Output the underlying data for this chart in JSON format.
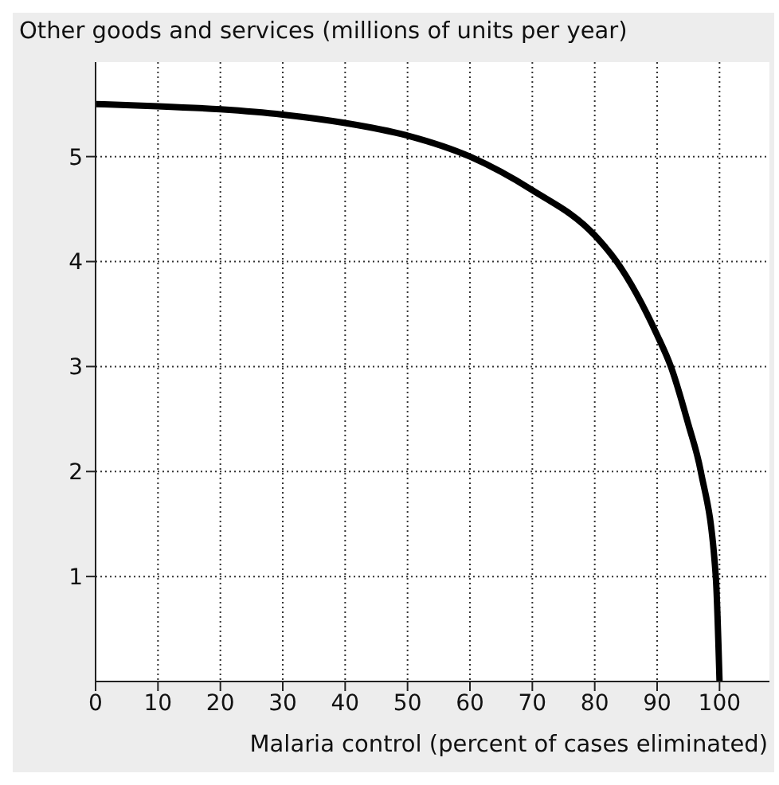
{
  "chart_data": {
    "type": "line",
    "ylabel": "Other goods and services (millions of units per year)",
    "xlabel": "Malaria control (percent of cases eliminated)",
    "series": [
      {
        "color": "#000000",
        "x": [
          0,
          10,
          20,
          30,
          40,
          50,
          60,
          70,
          80,
          83.5,
          90,
          92.2,
          95,
          97,
          99.4,
          100
        ],
        "values": [
          5.5,
          5.48,
          5.45,
          5.4,
          5.32,
          5.2,
          5.0,
          4.68,
          4.25,
          4.0,
          3.3,
          3.0,
          2.45,
          2.0,
          1.0,
          0
        ]
      }
    ],
    "xlim": [
      0,
      108
    ],
    "xticks": [
      0,
      10,
      20,
      30,
      40,
      50,
      60,
      70,
      80,
      90,
      100
    ],
    "ylim": [
      0,
      5.9
    ],
    "yticks": [
      1,
      2,
      3,
      4,
      5
    ],
    "grid": true,
    "marker": "none",
    "line_style": "solid"
  }
}
